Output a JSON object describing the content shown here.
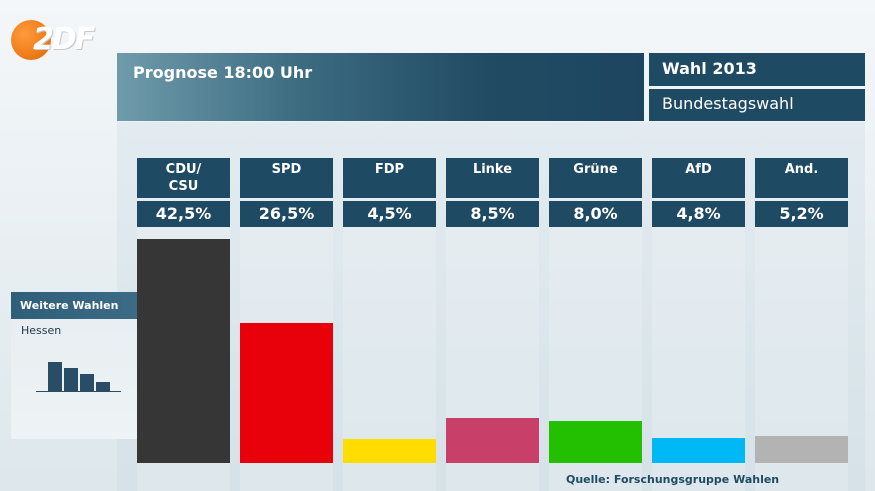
{
  "logo": {
    "text_prefix": "2",
    "text_main": "DF"
  },
  "header": {
    "title": "Prognose 18:00 Uhr",
    "election_year": "Wahl 2013",
    "election_type": "Bundestagswahl"
  },
  "sidebar": {
    "title": "Weitere Wahlen",
    "item": "Hessen"
  },
  "source": "Quelle: Forschungsgruppe Wahlen",
  "chart_data": {
    "type": "bar",
    "title": "Prognose 18:00 Uhr",
    "categories": [
      "CDU/\nCSU",
      "SPD",
      "FDP",
      "Linke",
      "Grüne",
      "AfD",
      "And."
    ],
    "values": [
      42.5,
      26.5,
      4.5,
      8.5,
      8.0,
      4.8,
      5.2
    ],
    "value_labels": [
      "42,5%",
      "26,5%",
      "4,5%",
      "8,5%",
      "8,0%",
      "4,8%",
      "5,2%"
    ],
    "colors": [
      "#363636",
      "#e8000b",
      "#ffdd00",
      "#c8406a",
      "#22c000",
      "#00b8f5",
      "#b3b3b3"
    ],
    "unit": "%",
    "xlabel": "",
    "ylabel": "",
    "ylim": [
      0,
      42.5
    ],
    "grid": false,
    "legend": "none"
  },
  "mini_chart": {
    "values": [
      4,
      3.2,
      2.3,
      1.3
    ]
  }
}
